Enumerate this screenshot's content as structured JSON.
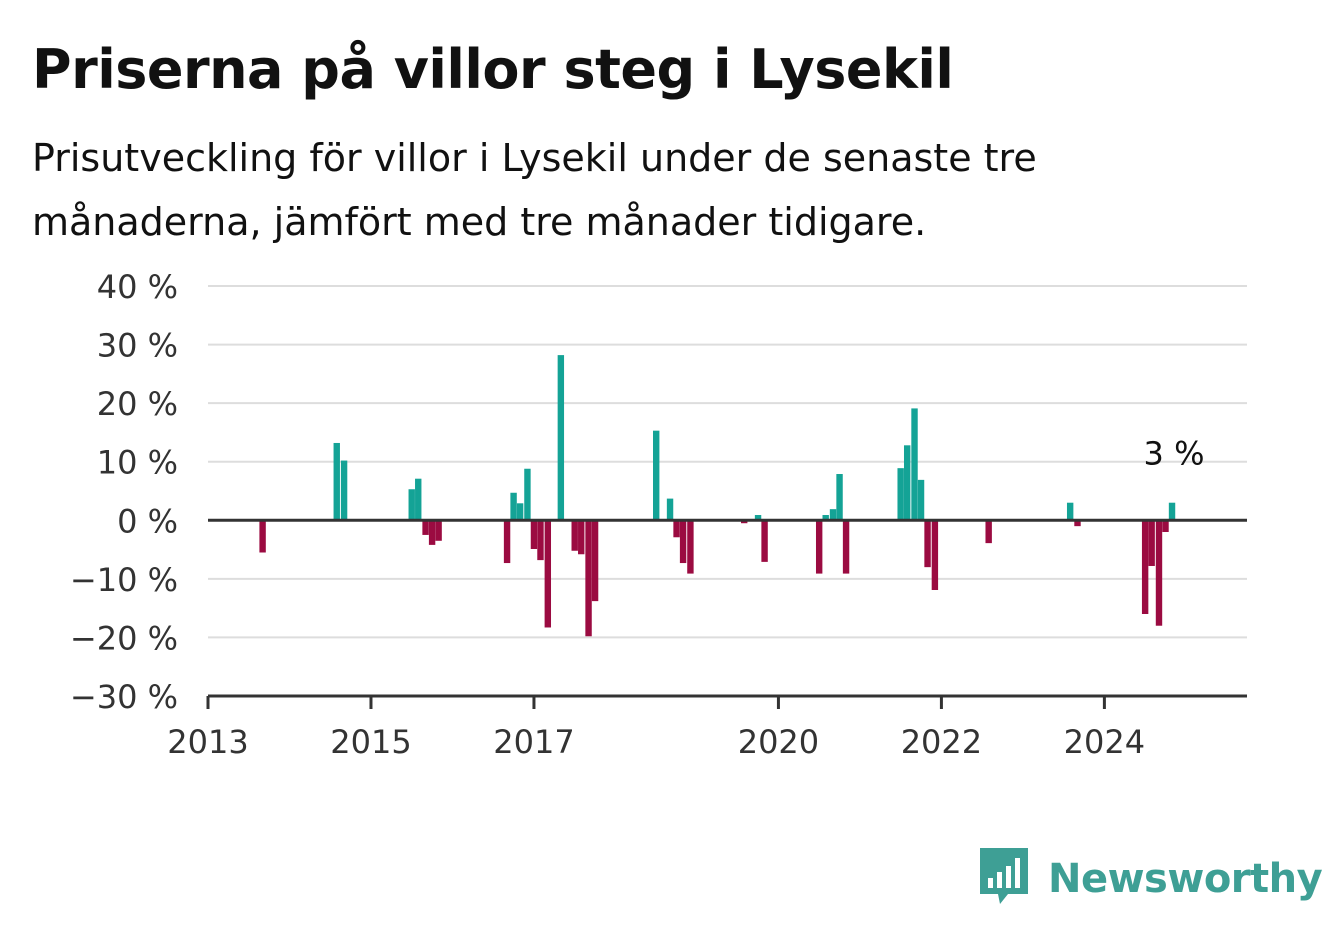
{
  "title": "Priserna på villor steg i Lysekil",
  "subtitle": "Prisutveckling för villor i Lysekil under de senaste tre månaderna, jämfört med tre månader tidigare.",
  "logo": {
    "text": "Newsworthy",
    "icon": "bar-chart-speech-bubble-icon"
  },
  "colors": {
    "positive": "#14a396",
    "negative": "#9b0b41",
    "axis": "#333333",
    "grid": "#dddddd",
    "brand": "#3e9f95"
  },
  "chart_data": {
    "type": "bar",
    "xlabel": "",
    "ylabel": "",
    "ylim": [
      -30,
      40
    ],
    "xlim": [
      2013.0,
      2025.75
    ],
    "grid": true,
    "yticks": [
      -30,
      -20,
      -10,
      0,
      10,
      20,
      30,
      40
    ],
    "ytick_labels": [
      "−30 %",
      "−20 %",
      "−10 %",
      "0 %",
      "10 %",
      "20 %",
      "30 %",
      "40 %"
    ],
    "xticks": [
      2013,
      2015,
      2017,
      2020,
      2022,
      2024
    ],
    "xtick_labels": [
      "2013",
      "2015",
      "2017",
      "2020",
      "2022",
      "2024"
    ],
    "annotation": {
      "text": "3 %",
      "x": 2024.83,
      "y": 3
    },
    "x": [
      2013.67,
      2014.58,
      2014.67,
      2015.5,
      2015.58,
      2015.67,
      2015.75,
      2015.83,
      2016.67,
      2016.75,
      2016.83,
      2016.92,
      2017.0,
      2017.08,
      2017.17,
      2017.33,
      2017.5,
      2017.58,
      2017.67,
      2017.75,
      2018.5,
      2018.67,
      2018.75,
      2018.83,
      2018.92,
      2019.58,
      2019.75,
      2019.83,
      2020.5,
      2020.58,
      2020.67,
      2020.75,
      2020.83,
      2021.5,
      2021.58,
      2021.67,
      2021.75,
      2021.83,
      2021.92,
      2022.58,
      2023.58,
      2023.67,
      2024.5,
      2024.58,
      2024.67,
      2024.75,
      2024.83
    ],
    "values": [
      -5.5,
      13.2,
      10.2,
      5.3,
      7.1,
      -2.5,
      -4.2,
      -3.5,
      -7.3,
      4.7,
      2.9,
      8.8,
      -4.9,
      -6.8,
      -18.3,
      28.2,
      -5.2,
      -5.8,
      -19.8,
      -13.8,
      15.3,
      3.7,
      -2.9,
      -7.3,
      -9.1,
      -0.5,
      0.9,
      -7.1,
      -9.1,
      0.9,
      1.9,
      7.9,
      -9.1,
      8.9,
      12.8,
      19.1,
      6.9,
      -8.0,
      -11.9,
      -3.9,
      3.0,
      -1.0,
      -16.0,
      -7.8,
      -18.0,
      -2.0,
      3.0
    ]
  }
}
